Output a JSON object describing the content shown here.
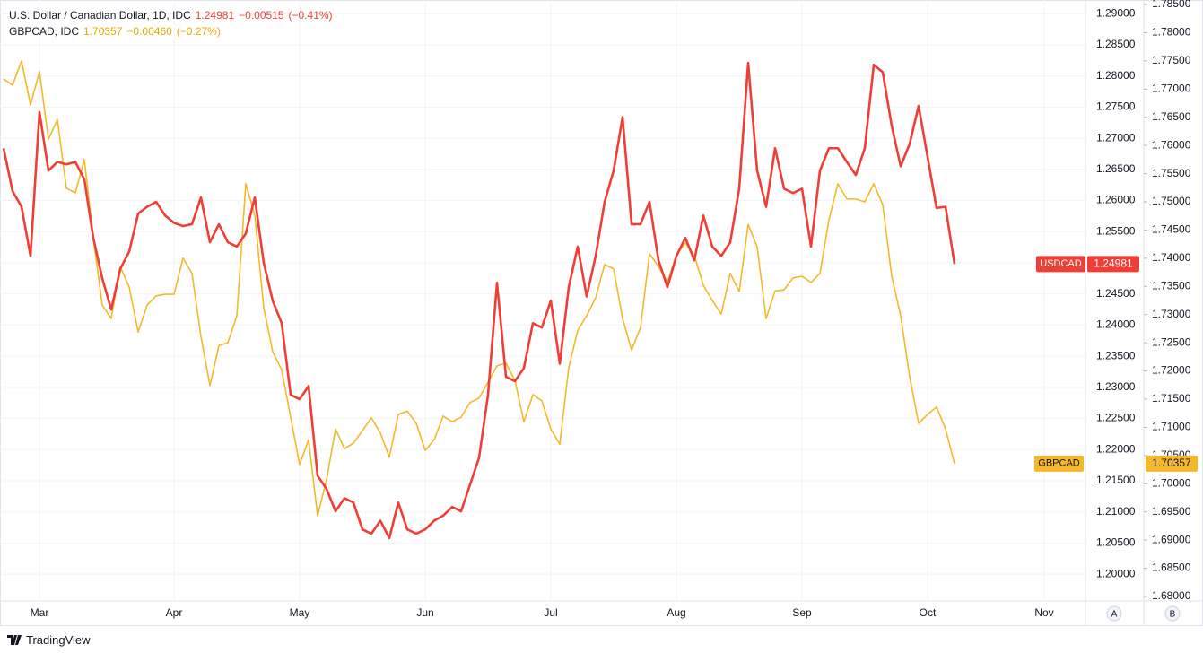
{
  "chart_data": {
    "type": "line",
    "categories": [
      null,
      null,
      null,
      null,
      "Mar",
      null,
      null,
      null,
      null,
      null,
      null,
      null,
      null,
      null,
      null,
      null,
      null,
      null,
      null,
      "Apr",
      null,
      null,
      null,
      null,
      null,
      null,
      null,
      null,
      null,
      null,
      null,
      null,
      null,
      "May",
      null,
      null,
      null,
      null,
      null,
      null,
      null,
      null,
      null,
      null,
      null,
      null,
      null,
      "Jun",
      null,
      null,
      null,
      null,
      null,
      null,
      null,
      null,
      null,
      null,
      null,
      null,
      null,
      "Jul",
      null,
      null,
      null,
      null,
      null,
      null,
      null,
      null,
      null,
      null,
      null,
      null,
      null,
      "Aug",
      null,
      null,
      null,
      null,
      null,
      null,
      null,
      null,
      null,
      null,
      null,
      null,
      null,
      "Sep",
      null,
      null,
      null,
      null,
      null,
      null,
      null,
      null,
      null,
      null,
      null,
      null,
      null,
      "Oct",
      null,
      null,
      null,
      null,
      null,
      null,
      null,
      null,
      null,
      null,
      null,
      null,
      "Nov",
      null,
      null,
      null,
      null
    ],
    "series": [
      {
        "name": "USDCAD",
        "title": "U.S. Dollar / Canadian Dollar, 1D, IDC",
        "change": "−0.00515",
        "change_pct": "(−0.41%)",
        "color": "#ef3e36",
        "axis": "y",
        "values": [
          1.2684,
          1.2615,
          1.259,
          1.2511,
          1.2742,
          1.2648,
          1.2662,
          1.2658,
          1.2662,
          1.2634,
          1.254,
          1.2475,
          1.2425,
          1.249,
          1.2518,
          1.2579,
          1.259,
          1.2598,
          1.2576,
          1.2564,
          1.2559,
          1.2562,
          1.2605,
          1.2533,
          1.2562,
          1.2533,
          1.2526,
          1.2547,
          1.2605,
          1.25,
          1.2439,
          1.2403,
          1.2288,
          1.2281,
          1.2302,
          1.2158,
          1.2137,
          1.2101,
          1.2122,
          1.2115,
          1.2072,
          1.2065,
          1.2086,
          1.2058,
          1.2115,
          1.2072,
          1.2065,
          1.2072,
          1.2086,
          1.2094,
          1.2108,
          1.2101,
          1.2144,
          1.2187,
          1.2288,
          1.2468,
          1.2317,
          1.231,
          1.2331,
          1.2403,
          1.2396,
          1.2439,
          1.2338,
          1.2461,
          1.2526,
          1.2446,
          1.2511,
          1.2598,
          1.2648,
          1.2734,
          1.2562,
          1.2562,
          1.2598,
          1.2504,
          1.2461,
          1.2511,
          1.254,
          1.2504,
          1.2576,
          1.2526,
          1.2511,
          1.2533,
          1.2619,
          1.2821,
          1.2648,
          1.259,
          1.2684,
          1.2619,
          1.2612,
          1.2619,
          1.2526,
          1.2648,
          1.2684,
          1.2684,
          1.2662,
          1.2641,
          1.2684,
          1.2818,
          1.2806,
          1.272,
          1.2655,
          1.2691,
          1.2752,
          1.267,
          1.2588,
          1.259,
          1.24981,
          null,
          null,
          null,
          null,
          null,
          null,
          null,
          null,
          null,
          null,
          null,
          null,
          null,
          null
        ]
      },
      {
        "name": "GBPCAD",
        "title": "GBPCAD, IDC",
        "change": "−0.00460",
        "change_pct": "(−0.27%)",
        "color": "#f5b829",
        "axis": "y2",
        "values": [
          1.7718,
          1.7707,
          1.775,
          1.7672,
          1.7731,
          1.7611,
          1.7646,
          1.7524,
          1.7516,
          1.7575,
          1.7436,
          1.7317,
          1.7293,
          1.7385,
          1.7349,
          1.7269,
          1.7317,
          1.7333,
          1.7336,
          1.7336,
          1.74,
          1.7373,
          1.7261,
          1.7174,
          1.7245,
          1.725,
          1.7298,
          1.7532,
          1.7476,
          1.7312,
          1.7234,
          1.7202,
          1.7118,
          1.7034,
          1.7078,
          1.6943,
          1.7007,
          1.7097,
          1.7062,
          1.7072,
          1.7094,
          1.7117,
          1.709,
          1.7047,
          1.7123,
          1.7129,
          1.7107,
          1.7059,
          1.7078,
          1.712,
          1.711,
          1.7118,
          1.7144,
          1.7152,
          1.718,
          1.7209,
          1.7214,
          1.7183,
          1.711,
          1.7158,
          1.7147,
          1.7097,
          1.707,
          1.7206,
          1.7272,
          1.7298,
          1.733,
          1.7389,
          1.7381,
          1.7293,
          1.7237,
          1.7277,
          1.7408,
          1.7385,
          1.7358,
          1.7405,
          1.7427,
          1.7405,
          1.7352,
          1.7325,
          1.7301,
          1.7373,
          1.7341,
          1.746,
          1.742,
          1.7293,
          1.7342,
          1.7344,
          1.7365,
          1.7368,
          1.7357,
          1.7373,
          1.7468,
          1.7532,
          1.7505,
          1.7505,
          1.75,
          1.7532,
          1.7495,
          1.7368,
          1.7298,
          1.719,
          1.7107,
          1.7123,
          1.7136,
          1.7097,
          1.70357,
          null,
          null,
          null,
          null,
          null,
          null,
          null,
          null,
          null,
          null,
          null,
          null,
          null,
          null
        ]
      }
    ],
    "ylim": [
      1.1957,
      1.2922
    ],
    "yticks": [
      {
        "value": 1.2,
        "label": "1.20000"
      },
      {
        "value": 1.205,
        "label": "1.20500"
      },
      {
        "value": 1.21,
        "label": "1.21000"
      },
      {
        "value": 1.215,
        "label": "1.21500"
      },
      {
        "value": 1.22,
        "label": "1.22000"
      },
      {
        "value": 1.225,
        "label": "1.22500"
      },
      {
        "value": 1.23,
        "label": "1.23000"
      },
      {
        "value": 1.235,
        "label": "1.23500"
      },
      {
        "value": 1.24,
        "label": "1.24000"
      },
      {
        "value": 1.245,
        "label": "1.24500"
      },
      {
        "value": 1.25,
        "label": "1.25000"
      },
      {
        "value": 1.255,
        "label": "1.25500"
      },
      {
        "value": 1.26,
        "label": "1.26000"
      },
      {
        "value": 1.265,
        "label": "1.26500"
      },
      {
        "value": 1.27,
        "label": "1.27000"
      },
      {
        "value": 1.275,
        "label": "1.27500"
      },
      {
        "value": 1.28,
        "label": "1.28000"
      },
      {
        "value": 1.285,
        "label": "1.28500"
      },
      {
        "value": 1.29,
        "label": "1.29000"
      }
    ],
    "y2lim": [
      1.6792,
      1.7858
    ],
    "y2ticks": [
      {
        "value": 1.68,
        "label": "1.68000"
      },
      {
        "value": 1.685,
        "label": "1.68500"
      },
      {
        "value": 1.69,
        "label": "1.69000"
      },
      {
        "value": 1.695,
        "label": "1.69500"
      },
      {
        "value": 1.7,
        "label": "1.70000"
      },
      {
        "value": 1.705,
        "label": "1.70500"
      },
      {
        "value": 1.71,
        "label": "1.71000"
      },
      {
        "value": 1.715,
        "label": "1.71500"
      },
      {
        "value": 1.72,
        "label": "1.72000"
      },
      {
        "value": 1.725,
        "label": "1.72500"
      },
      {
        "value": 1.73,
        "label": "1.73000"
      },
      {
        "value": 1.735,
        "label": "1.73500"
      },
      {
        "value": 1.74,
        "label": "1.74000"
      },
      {
        "value": 1.745,
        "label": "1.74500"
      },
      {
        "value": 1.75,
        "label": "1.75000"
      },
      {
        "value": 1.755,
        "label": "1.75500"
      },
      {
        "value": 1.76,
        "label": "1.76000"
      },
      {
        "value": 1.765,
        "label": "1.76500"
      },
      {
        "value": 1.77,
        "label": "1.77000"
      },
      {
        "value": 1.775,
        "label": "1.77500"
      },
      {
        "value": 1.78,
        "label": "1.78000"
      },
      {
        "value": 1.785,
        "label": "1.78500"
      }
    ],
    "grid": true,
    "axis_buttons": [
      "A",
      "B"
    ],
    "branding": "TradingView"
  }
}
